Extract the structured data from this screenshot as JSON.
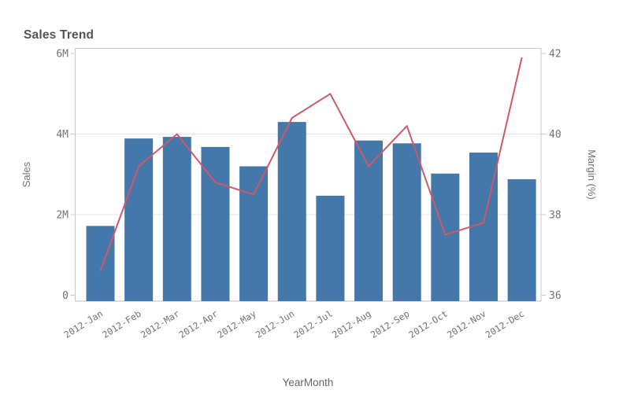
{
  "chart": {
    "title": "Sales Trend"
  },
  "chart_data": {
    "type": "combo",
    "title": "Sales Trend",
    "categories": [
      "2012-Jan",
      "2012-Feb",
      "2012-Mar",
      "2012-Apr",
      "2012-May",
      "2012-Jun",
      "2012-Jul",
      "2012-Aug",
      "2012-Sep",
      "2012-Oct",
      "2012-Nov",
      "2012-Dec"
    ],
    "series": [
      {
        "name": "Sales",
        "type": "bar",
        "axis": "left",
        "color": "#4477aa",
        "values": [
          1720000,
          3890000,
          3930000,
          3680000,
          3200000,
          4300000,
          2470000,
          3840000,
          3770000,
          3020000,
          3540000,
          2880000
        ]
      },
      {
        "name": "Margin (%)",
        "type": "line",
        "axis": "right",
        "color": "#cc5a68",
        "values": [
          36.6,
          39.2,
          40.0,
          38.8,
          38.5,
          40.4,
          41.0,
          39.2,
          40.2,
          37.5,
          37.8,
          41.9
        ]
      }
    ],
    "left_axis": {
      "label": "Sales",
      "min": 0,
      "max": 6000000,
      "ticks": [
        "0",
        "2M",
        "4M",
        "6M"
      ]
    },
    "right_axis": {
      "label": "Margin (%)",
      "min": 36,
      "max": 42,
      "ticks": [
        "36",
        "38",
        "40",
        "42"
      ]
    },
    "x_axis": {
      "label": "YearMonth"
    },
    "grid": true,
    "legend": "none",
    "colors": {
      "grid": "#e4e4e4",
      "axis": "#c9c9c9",
      "tick_text": "#737373",
      "title_text": "#545454"
    }
  }
}
